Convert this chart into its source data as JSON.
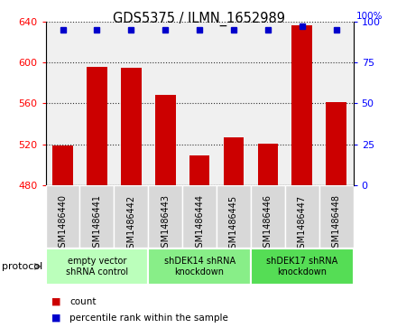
{
  "title": "GDS5375 / ILMN_1652989",
  "samples": [
    "GSM1486440",
    "GSM1486441",
    "GSM1486442",
    "GSM1486443",
    "GSM1486444",
    "GSM1486445",
    "GSM1486446",
    "GSM1486447",
    "GSM1486448"
  ],
  "counts": [
    519,
    596,
    595,
    568,
    509,
    527,
    521,
    636,
    561
  ],
  "percentile_ranks": [
    95,
    95,
    95,
    95,
    95,
    95,
    95,
    97,
    95
  ],
  "ylim": [
    480,
    640
  ],
  "yticks": [
    480,
    520,
    560,
    600,
    640
  ],
  "right_yticks": [
    0,
    25,
    50,
    75,
    100
  ],
  "right_ylim": [
    0,
    100
  ],
  "bar_color": "#cc0000",
  "dot_color": "#0000cc",
  "bar_width": 0.6,
  "groups": [
    {
      "label": "empty vector\nshRNA control",
      "start": 0,
      "end": 3,
      "color": "#bbffbb"
    },
    {
      "label": "shDEK14 shRNA\nknockdown",
      "start": 3,
      "end": 6,
      "color": "#88ee88"
    },
    {
      "label": "shDEK17 shRNA\nknockdown",
      "start": 6,
      "end": 9,
      "color": "#55dd55"
    }
  ],
  "legend_items": [
    {
      "color": "#cc0000",
      "label": "count"
    },
    {
      "color": "#0000cc",
      "label": "percentile rank within the sample"
    }
  ],
  "plot_bg_color": "#f0f0f0",
  "sample_box_color": "#d8d8d8",
  "sample_box_border": "#aaaaaa"
}
